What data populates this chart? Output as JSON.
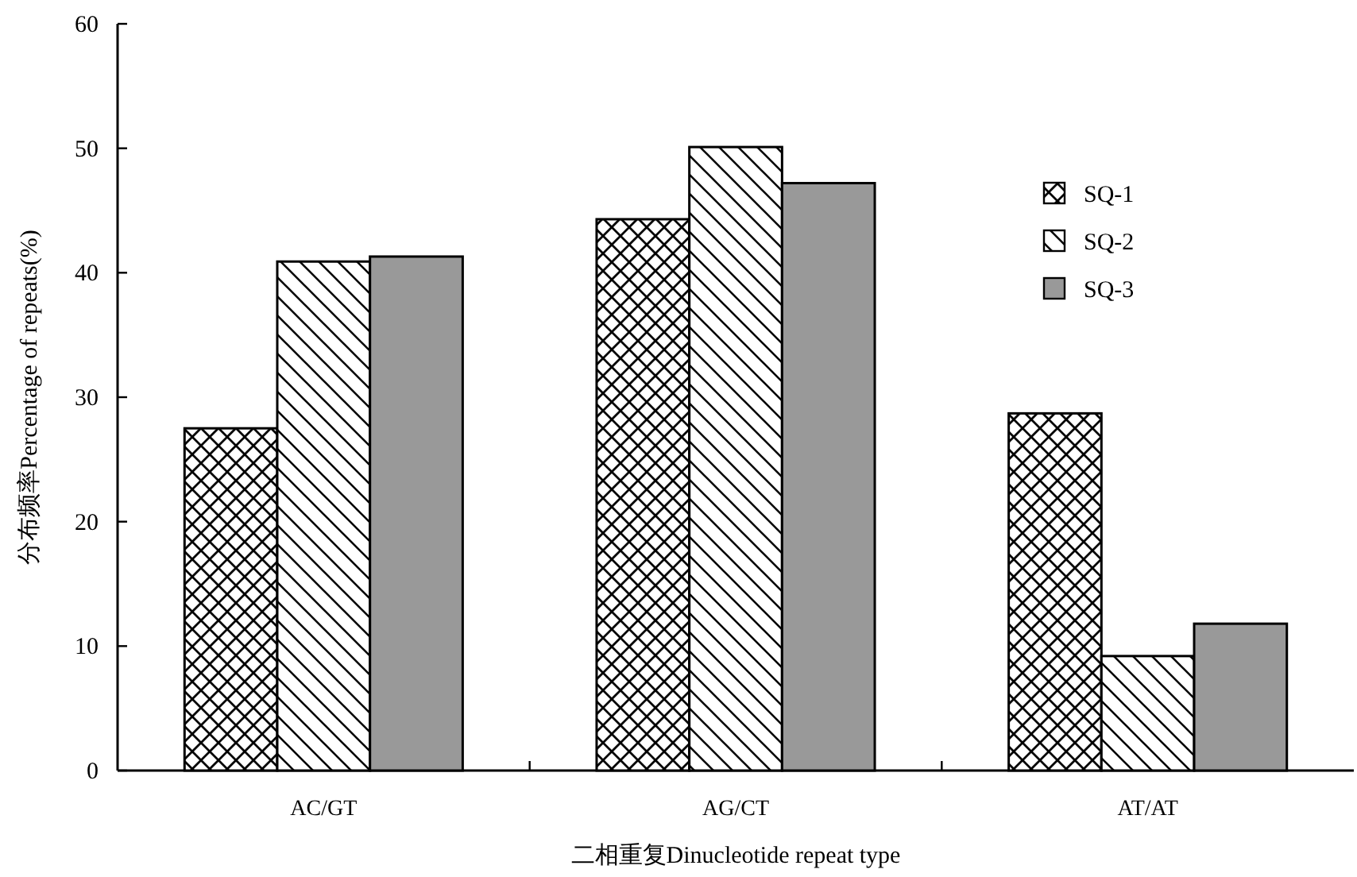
{
  "chart_data": {
    "type": "bar",
    "xlabel": "二相重复Dinucleotide repeat type",
    "ylabel": "分布频率Percentage of repeats(%)",
    "categories": [
      "AC/GT",
      "AG/CT",
      "AT/AT"
    ],
    "series": [
      {
        "name": "SQ-1",
        "color": "#000000",
        "values": [
          27.5,
          44.3,
          28.7
        ]
      },
      {
        "name": "SQ-2",
        "color": "#000000",
        "values": [
          40.9,
          50.1,
          9.2
        ]
      },
      {
        "name": "SQ-3",
        "color": "#999999",
        "values": [
          41.3,
          47.2,
          11.8
        ]
      }
    ],
    "ylim": [
      0,
      60
    ],
    "yticks": [
      0,
      10,
      20,
      30,
      40,
      50,
      60
    ],
    "legend": "top right",
    "grid": false
  }
}
